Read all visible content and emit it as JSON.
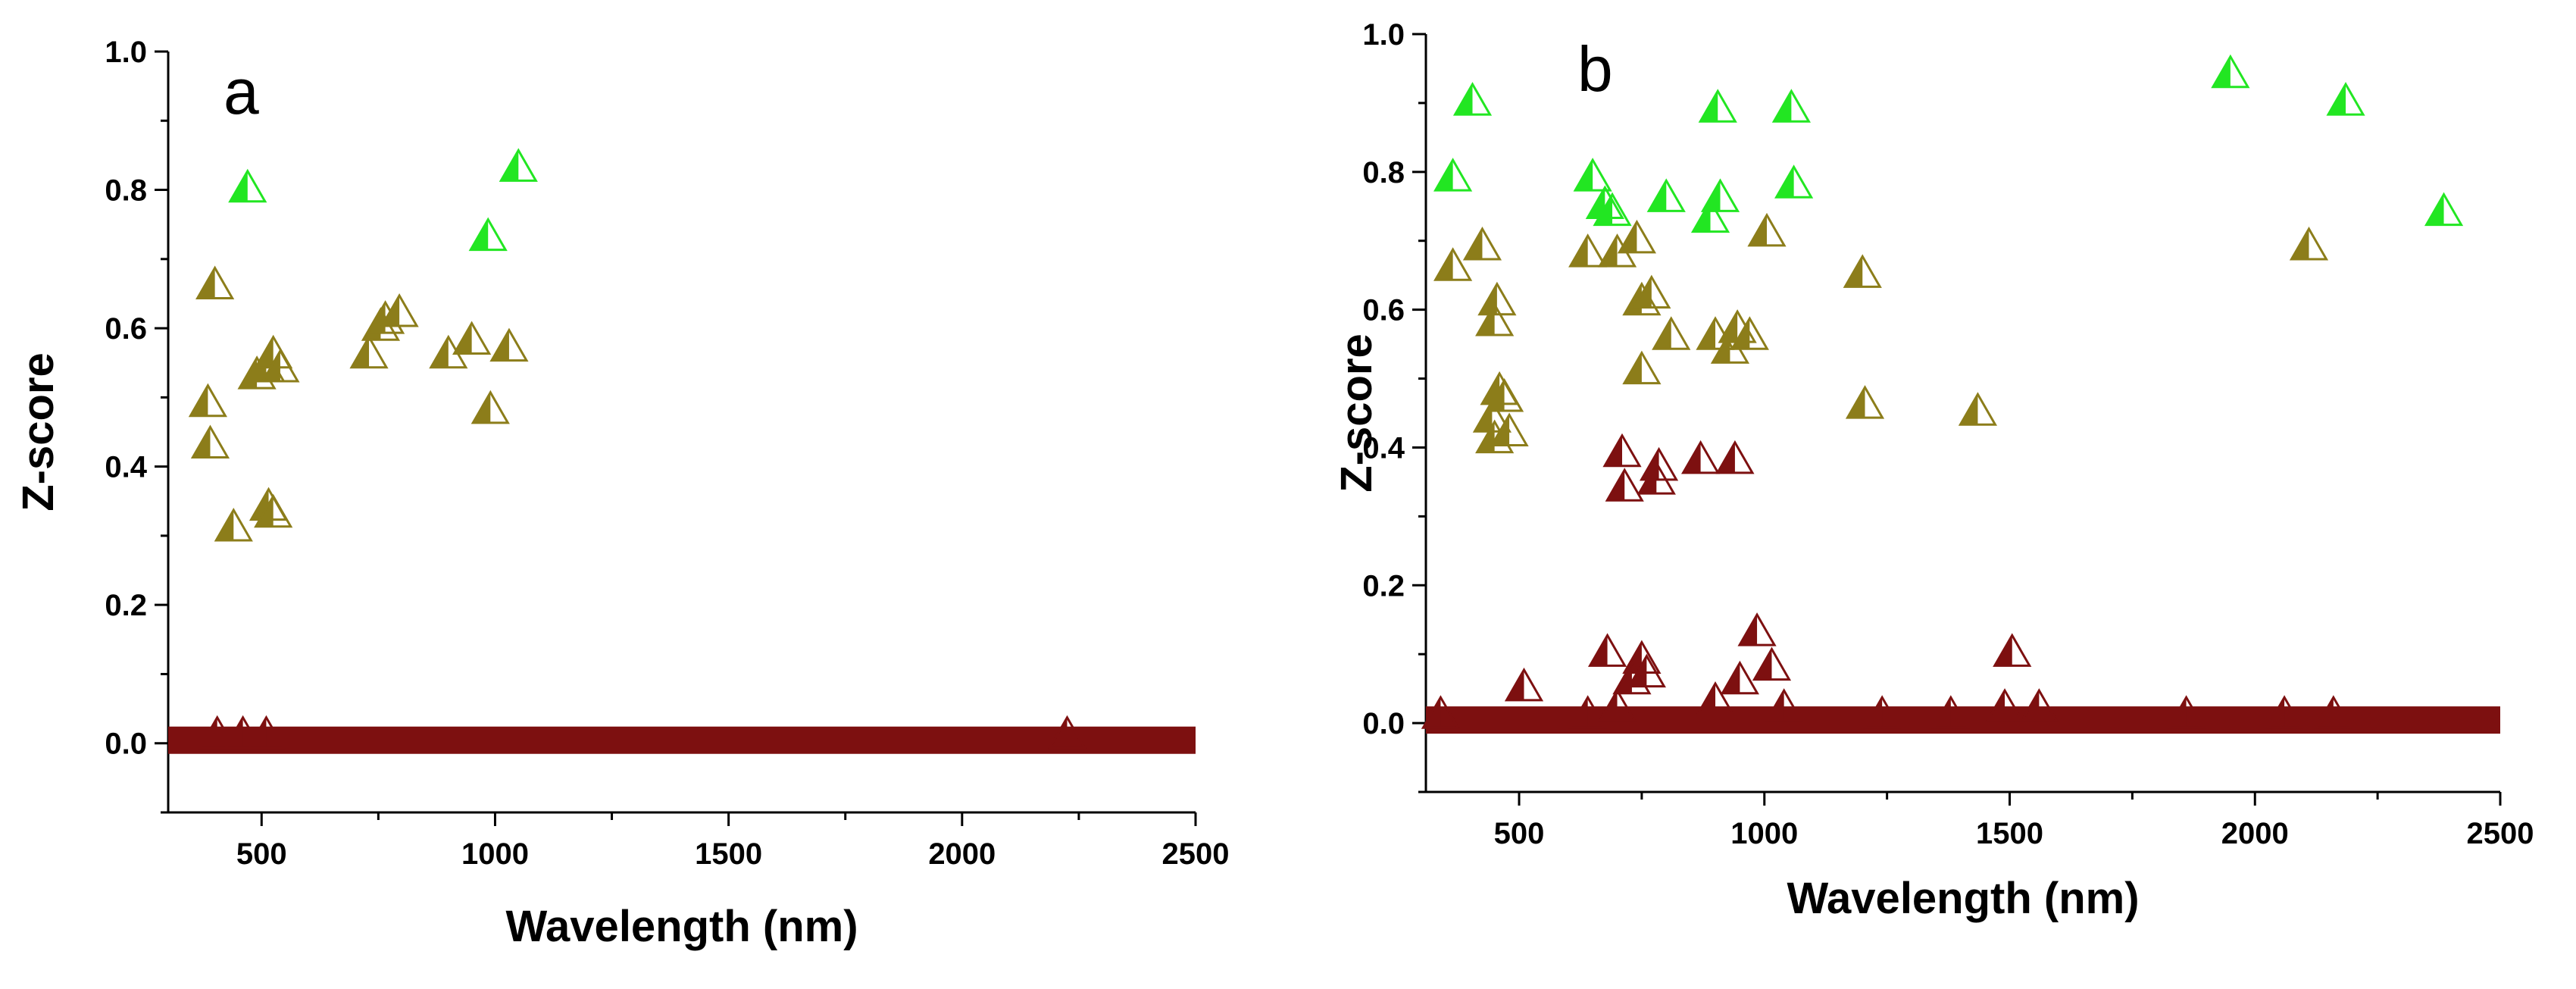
{
  "chart_data": [
    {
      "type": "scatter",
      "panel_label": "a",
      "xlabel": "Wavelength (nm)",
      "ylabel": "Z-score",
      "xlim": [
        300,
        2500
      ],
      "ylim": [
        -0.1,
        1.0
      ],
      "x_ticks": [
        500,
        1000,
        1500,
        2000,
        2500
      ],
      "y_ticks": [
        0.0,
        0.2,
        0.4,
        0.6,
        0.8,
        1.0
      ],
      "y_tick_labels": [
        "0.0",
        "0.2",
        "0.4",
        "0.6",
        "0.8",
        "1.0"
      ],
      "grid": false,
      "marker": "half-filled triangle",
      "series": [
        {
          "color": "#22e622",
          "points": [
            [
              470,
              0.8
            ],
            [
              1050,
              0.83
            ],
            [
              985,
              0.73
            ]
          ]
        },
        {
          "color": "#8c7d1a",
          "points": [
            [
              400,
              0.66
            ],
            [
              385,
              0.49
            ],
            [
              390,
              0.43
            ],
            [
              440,
              0.31
            ],
            [
              490,
              0.53
            ],
            [
              510,
              0.54
            ],
            [
              525,
              0.56
            ],
            [
              540,
              0.54
            ],
            [
              515,
              0.34
            ],
            [
              525,
              0.33
            ],
            [
              730,
              0.56
            ],
            [
              755,
              0.6
            ],
            [
              765,
              0.61
            ],
            [
              795,
              0.62
            ],
            [
              900,
              0.56
            ],
            [
              950,
              0.58
            ],
            [
              1030,
              0.57
            ],
            [
              990,
              0.48
            ]
          ]
        },
        {
          "color": "#7d1010",
          "baseline": {
            "x_start": 300,
            "x_end": 2500,
            "y": 0.0
          },
          "points": [
            [
              405,
              0.01
            ],
            [
              460,
              0.01
            ],
            [
              510,
              0.01
            ],
            [
              2225,
              0.01
            ]
          ]
        }
      ]
    },
    {
      "type": "scatter",
      "panel_label": "b",
      "xlabel": "Wavelength (nm)",
      "ylabel": "Z-score",
      "xlim": [
        310,
        2500
      ],
      "ylim": [
        -0.1,
        1.0
      ],
      "x_ticks": [
        500,
        1000,
        1500,
        2000,
        2500
      ],
      "y_ticks": [
        0.0,
        0.2,
        0.4,
        0.6,
        0.8,
        1.0
      ],
      "y_tick_labels": [
        "0.0",
        "0.2",
        "0.4",
        "0.6",
        "0.8",
        "1.0"
      ],
      "grid": false,
      "marker": "half-filled triangle",
      "series": [
        {
          "color": "#22e622",
          "points": [
            [
              365,
              0.79
            ],
            [
              405,
              0.9
            ],
            [
              650,
              0.79
            ],
            [
              675,
              0.75
            ],
            [
              690,
              0.74
            ],
            [
              800,
              0.76
            ],
            [
              905,
              0.89
            ],
            [
              910,
              0.76
            ],
            [
              890,
              0.73
            ],
            [
              1055,
              0.89
            ],
            [
              1060,
              0.78
            ],
            [
              1950,
              0.94
            ],
            [
              2185,
              0.9
            ],
            [
              2385,
              0.74
            ]
          ]
        },
        {
          "color": "#8c7d1a",
          "points": [
            [
              365,
              0.66
            ],
            [
              425,
              0.69
            ],
            [
              455,
              0.61
            ],
            [
              450,
              0.58
            ],
            [
              445,
              0.44
            ],
            [
              460,
              0.48
            ],
            [
              470,
              0.47
            ],
            [
              480,
              0.42
            ],
            [
              450,
              0.41
            ],
            [
              640,
              0.68
            ],
            [
              700,
              0.68
            ],
            [
              740,
              0.7
            ],
            [
              750,
              0.61
            ],
            [
              770,
              0.62
            ],
            [
              810,
              0.56
            ],
            [
              750,
              0.51
            ],
            [
              900,
              0.56
            ],
            [
              930,
              0.54
            ],
            [
              945,
              0.57
            ],
            [
              970,
              0.56
            ],
            [
              1005,
              0.71
            ],
            [
              1200,
              0.65
            ],
            [
              1205,
              0.46
            ],
            [
              1435,
              0.45
            ],
            [
              2110,
              0.69
            ]
          ]
        },
        {
          "color": "#7d1010",
          "baseline": {
            "x_start": 310,
            "x_end": 2500,
            "y": 0.0
          },
          "points": [
            [
              710,
              0.39
            ],
            [
              715,
              0.34
            ],
            [
              780,
              0.35
            ],
            [
              785,
              0.37
            ],
            [
              870,
              0.38
            ],
            [
              940,
              0.38
            ],
            [
              680,
              0.1
            ],
            [
              750,
              0.09
            ],
            [
              760,
              0.07
            ],
            [
              730,
              0.06
            ],
            [
              985,
              0.13
            ],
            [
              950,
              0.06
            ],
            [
              1015,
              0.08
            ],
            [
              1505,
              0.1
            ],
            [
              510,
              0.05
            ],
            [
              900,
              0.03
            ],
            [
              1040,
              0.02
            ],
            [
              1560,
              0.02
            ],
            [
              1490,
              0.02
            ],
            [
              1240,
              0.01
            ],
            [
              1380,
              0.01
            ],
            [
              1860,
              0.01
            ],
            [
              2060,
              0.01
            ],
            [
              2160,
              0.01
            ],
            [
              340,
              0.01
            ],
            [
              640,
              0.01
            ],
            [
              700,
              0.02
            ]
          ]
        }
      ]
    }
  ]
}
